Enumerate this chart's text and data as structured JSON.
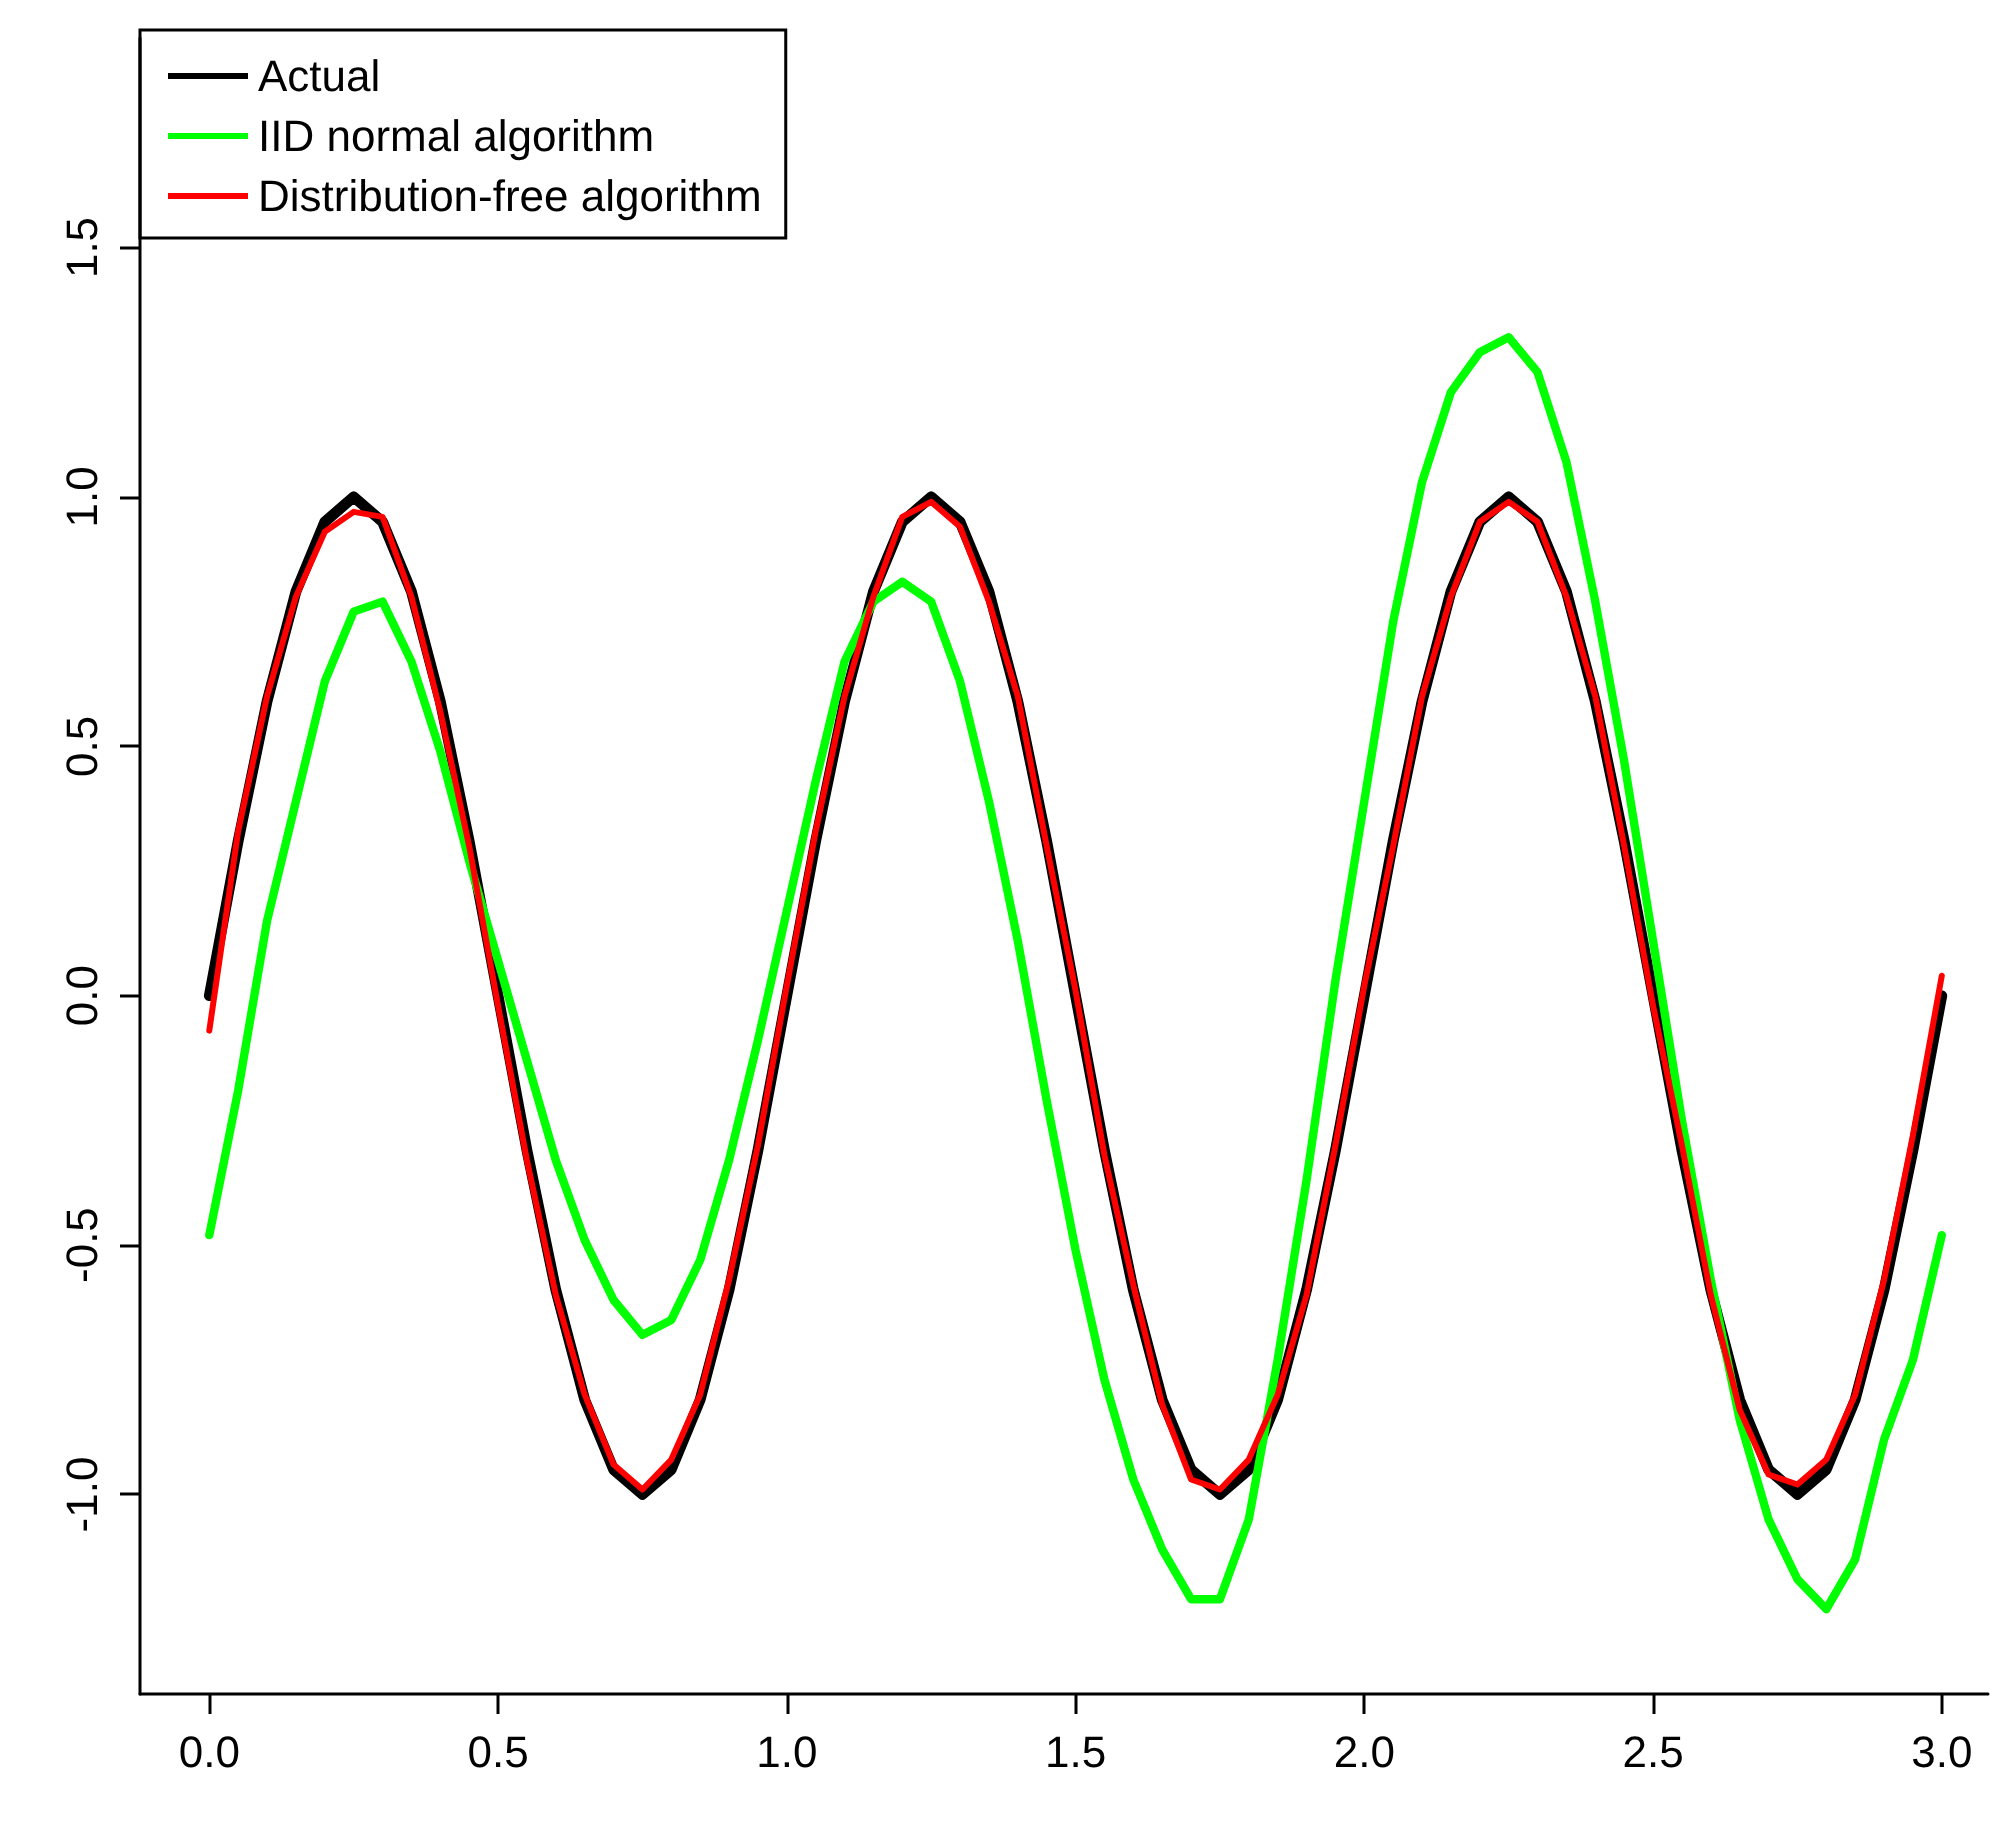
{
  "chart_data": {
    "type": "line",
    "xlim": [
      -0.12,
      3.08
    ],
    "ylim": [
      -1.4,
      1.92
    ],
    "xticks": [
      {
        "value": 0,
        "label": "0.0"
      },
      {
        "value": 0.5,
        "label": "0.5"
      },
      {
        "value": 1,
        "label": "1.0"
      },
      {
        "value": 1.5,
        "label": "1.5"
      },
      {
        "value": 2,
        "label": "2.0"
      },
      {
        "value": 2.5,
        "label": "2.5"
      },
      {
        "value": 3,
        "label": "3.0"
      }
    ],
    "yticks": [
      {
        "value": -1,
        "label": "-1.0"
      },
      {
        "value": -0.5,
        "label": "-0.5"
      },
      {
        "value": 0,
        "label": "0.0"
      },
      {
        "value": 0.5,
        "label": "0.5"
      },
      {
        "value": 1,
        "label": "1.0"
      },
      {
        "value": 1.5,
        "label": "1.5"
      }
    ],
    "grid": false,
    "legend": "top left",
    "marker": "none",
    "line_style": "solid",
    "x": [
      0,
      0.05,
      0.1,
      0.15,
      0.2,
      0.25,
      0.3,
      0.35,
      0.4,
      0.45,
      0.5,
      0.55,
      0.6,
      0.65,
      0.7,
      0.75,
      0.8,
      0.85,
      0.9,
      0.95,
      1,
      1.05,
      1.1,
      1.15,
      1.2,
      1.25,
      1.3,
      1.35,
      1.4,
      1.45,
      1.5,
      1.55,
      1.6,
      1.65,
      1.7,
      1.75,
      1.8,
      1.85,
      1.9,
      1.95,
      2,
      2.05,
      2.1,
      2.15,
      2.2,
      2.25,
      2.3,
      2.35,
      2.4,
      2.45,
      2.5,
      2.55,
      2.6,
      2.65,
      2.7,
      2.75,
      2.8,
      2.85,
      2.9,
      2.95,
      3
    ],
    "series": [
      {
        "name": "Actual",
        "color": "#000000",
        "values": [
          0,
          0.31,
          0.59,
          0.81,
          0.95,
          1,
          0.95,
          0.81,
          0.59,
          0.31,
          0,
          -0.31,
          -0.59,
          -0.81,
          -0.95,
          -1,
          -0.95,
          -0.81,
          -0.59,
          -0.31,
          0,
          0.31,
          0.59,
          0.81,
          0.95,
          1,
          0.95,
          0.81,
          0.59,
          0.31,
          0,
          -0.31,
          -0.59,
          -0.81,
          -0.95,
          -1,
          -0.95,
          -0.81,
          -0.59,
          -0.31,
          0,
          0.31,
          0.59,
          0.81,
          0.95,
          1,
          0.95,
          0.81,
          0.59,
          0.31,
          0,
          -0.31,
          -0.59,
          -0.81,
          -0.95,
          -1,
          -0.95,
          -0.81,
          -0.59,
          -0.31,
          0
        ]
      },
      {
        "name": "IID normal algorithm",
        "color": "#00ff00",
        "values": [
          -0.48,
          -0.19,
          0.15,
          0.39,
          0.63,
          0.77,
          0.79,
          0.67,
          0.49,
          0.27,
          0.07,
          -0.13,
          -0.33,
          -0.49,
          -0.61,
          -0.68,
          -0.65,
          -0.53,
          -0.33,
          -0.09,
          0.17,
          0.43,
          0.67,
          0.79,
          0.83,
          0.79,
          0.63,
          0.39,
          0.11,
          -0.21,
          -0.51,
          -0.77,
          -0.97,
          -1.11,
          -1.21,
          -1.21,
          -1.05,
          -0.73,
          -0.37,
          0.03,
          0.39,
          0.75,
          1.03,
          1.21,
          1.29,
          1.32,
          1.25,
          1.07,
          0.79,
          0.47,
          0.11,
          -0.25,
          -0.57,
          -0.85,
          -1.05,
          -1.17,
          -1.23,
          -1.13,
          -0.89,
          -0.73,
          -0.48
        ]
      },
      {
        "name": "Distribution-free algorithm",
        "color": "#ff0000",
        "values": [
          -0.07,
          0.33,
          0.6,
          0.8,
          0.93,
          0.97,
          0.96,
          0.8,
          0.57,
          0.3,
          -0.02,
          -0.33,
          -0.6,
          -0.8,
          -0.94,
          -0.99,
          -0.93,
          -0.8,
          -0.57,
          -0.3,
          0.02,
          0.33,
          0.6,
          0.8,
          0.96,
          0.99,
          0.94,
          0.79,
          0.6,
          0.3,
          0.01,
          -0.32,
          -0.58,
          -0.82,
          -0.97,
          -0.99,
          -0.93,
          -0.8,
          -0.6,
          -0.3,
          0.02,
          0.3,
          0.6,
          0.8,
          0.95,
          0.99,
          0.95,
          0.8,
          0.6,
          0.3,
          -0.02,
          -0.3,
          -0.6,
          -0.83,
          -0.96,
          -0.98,
          -0.93,
          -0.8,
          -0.57,
          -0.28,
          0.04
        ]
      }
    ]
  }
}
